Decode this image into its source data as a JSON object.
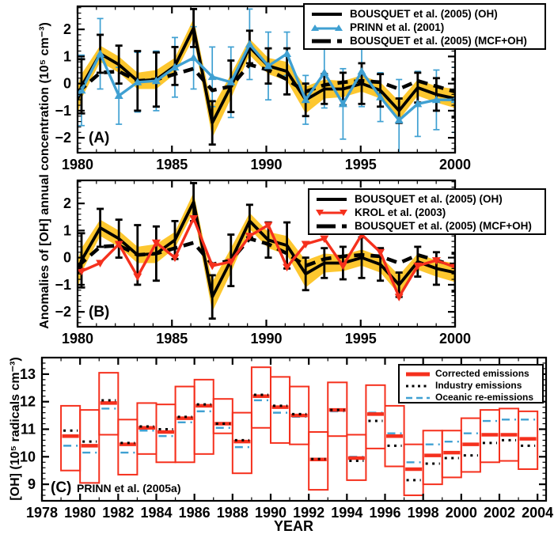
{
  "figure": {
    "background": "#ffffff",
    "colors": {
      "black": "#000000",
      "blue": "#3FA0D2",
      "red": "#F5301D",
      "yellow": "#FDC72F"
    }
  },
  "chart_data": [
    {
      "type": "line",
      "panel_label": "(A)",
      "ylabel": "Anomalies of [OH] annual concentration (10⁵ cm⁻³)",
      "x_years": [
        1980,
        1981,
        1982,
        1983,
        1984,
        1985,
        1986,
        1987,
        1988,
        1989,
        1990,
        1991,
        1992,
        1993,
        1994,
        1995,
        1996,
        1997,
        1998,
        1999,
        2000
      ],
      "xticks": [
        1980,
        1985,
        1990,
        1995,
        2000
      ],
      "yticks": [
        -2,
        -1,
        0,
        1,
        2
      ],
      "xlim": [
        1980,
        2000
      ],
      "ylim": [
        -2.55,
        2.85
      ],
      "legend": [
        "BOUSQUET et al. (2005) (OH)",
        "PRINN et al. (2001)",
        "BOUSQUET et al. (2005) (MCF+OH)"
      ],
      "band_halfwidth": [
        0.45,
        0.3,
        0.3,
        0.3,
        0.35,
        0.3,
        0.35,
        0.55,
        0.45,
        0.3,
        0.3,
        0.35,
        0.5,
        0.35,
        0.3,
        0.3,
        0.3,
        0.35,
        0.3,
        0.3,
        0.35
      ],
      "band_edge": {
        "c": -0.65,
        "hw": 0.55
      },
      "series": [
        {
          "name": "BOUSQUET et al. (2005) (OH)",
          "color": "#000000",
          "style": "solid",
          "edge_start": -0.6,
          "values": [
            -0.1,
            1.1,
            0.7,
            0.1,
            0.15,
            0.65,
            2.05,
            -1.45,
            -0.1,
            1.35,
            0.65,
            0.45,
            -0.6,
            -0.2,
            -0.2,
            0.0,
            -0.25,
            -1.0,
            -0.15,
            -0.4,
            -0.55
          ],
          "err": [
            1.0,
            0.7,
            0.7,
            1.1,
            1.0,
            0.7,
            0.7,
            0.8,
            0.95,
            0.6,
            0.65,
            0.85,
            0.6,
            0.55,
            0.6,
            0.75,
            0.6,
            0.45,
            0.55,
            0.6,
            0.7
          ]
        },
        {
          "name": "BOUSQUET et al. (2005) (MCF+OH)",
          "color": "#000000",
          "style": "dashed",
          "edge_start": -0.3,
          "values": [
            -0.2,
            0.4,
            0.45,
            0.1,
            0.15,
            0.35,
            0.55,
            -0.25,
            -0.1,
            0.7,
            0.5,
            0.15,
            -0.3,
            -0.05,
            0.05,
            0.1,
            0.05,
            -0.2,
            0.1,
            -0.1,
            -0.3
          ]
        },
        {
          "name": "PRINN et al. (2001)",
          "color": "#3FA0D2",
          "style": "triangle-up",
          "edge_start": -0.45,
          "values": [
            -0.25,
            1.1,
            -0.45,
            0.05,
            0.1,
            0.6,
            0.95,
            0.25,
            0.05,
            1.45,
            0.65,
            1.1,
            -0.6,
            0.4,
            -0.75,
            0.45,
            -0.5,
            -1.35,
            -0.75,
            -0.6,
            -0.6
          ],
          "err": [
            1.3,
            1.3,
            1.05,
            1.1,
            1.1,
            1.1,
            1.15,
            1.1,
            1.3,
            1.3,
            1.25,
            0.8,
            0.9,
            1.3,
            1.3,
            1.3,
            0.9,
            1.5,
            1.2,
            1.1,
            1.2
          ]
        }
      ]
    },
    {
      "type": "line",
      "panel_label": "(B)",
      "x_years": [
        1980,
        1981,
        1982,
        1983,
        1984,
        1985,
        1986,
        1987,
        1988,
        1989,
        1990,
        1991,
        1992,
        1993,
        1994,
        1995,
        1996,
        1997,
        1998,
        1999,
        2000
      ],
      "xticks": [
        1980,
        1985,
        1990,
        1995,
        2000
      ],
      "yticks": [
        -2,
        -1,
        0,
        1,
        2
      ],
      "xlim": [
        1980,
        2000
      ],
      "ylim": [
        -2.55,
        2.85
      ],
      "legend": [
        "BOUSQUET et al. (2005) (OH)",
        "KROL et al. (2003)",
        "BOUSQUET et al. (2005) (MCF+OH)"
      ],
      "band_halfwidth": [
        0.45,
        0.3,
        0.3,
        0.3,
        0.35,
        0.3,
        0.35,
        0.55,
        0.45,
        0.3,
        0.3,
        0.35,
        0.5,
        0.35,
        0.3,
        0.3,
        0.3,
        0.35,
        0.3,
        0.3,
        0.35
      ],
      "band_edge": {
        "c": -0.65,
        "hw": 0.55
      },
      "series": [
        {
          "name": "BOUSQUET et al. (2005) (OH)",
          "color": "#000000",
          "style": "solid",
          "edge_start": -0.6,
          "values": [
            -0.1,
            1.1,
            0.7,
            0.1,
            0.15,
            0.65,
            2.05,
            -1.45,
            -0.1,
            1.35,
            0.65,
            0.45,
            -0.6,
            -0.2,
            -0.2,
            0.0,
            -0.25,
            -1.0,
            -0.15,
            -0.4,
            -0.55
          ],
          "err": [
            1.0,
            0.7,
            0.7,
            1.1,
            1.0,
            0.7,
            0.7,
            0.8,
            0.95,
            0.6,
            0.65,
            0.85,
            0.6,
            0.55,
            0.6,
            0.75,
            0.6,
            0.45,
            0.55,
            0.6,
            0.7
          ]
        },
        {
          "name": "BOUSQUET et al. (2005) (MCF+OH)",
          "color": "#000000",
          "style": "dashed",
          "edge_start": -0.3,
          "values": [
            -0.2,
            0.4,
            0.45,
            0.1,
            0.15,
            0.35,
            0.55,
            -0.25,
            -0.1,
            0.7,
            0.5,
            0.15,
            -0.3,
            -0.05,
            0.05,
            0.1,
            0.05,
            -0.2,
            0.1,
            -0.1,
            -0.3
          ]
        },
        {
          "name": "KROL et al. (2003)",
          "color": "#F5301D",
          "style": "triangle-down",
          "edge_start": -0.45,
          "values": [
            -0.5,
            -0.2,
            0.5,
            -0.7,
            0.55,
            0.0,
            1.45,
            -0.3,
            -0.15,
            0.8,
            1.2,
            -0.35,
            0.5,
            0.7,
            -0.3,
            0.85,
            0.2,
            -1.45,
            -0.3,
            -0.1,
            -0.35
          ]
        }
      ]
    },
    {
      "type": "box",
      "panel_label": "(C)",
      "source": "PRINN et al. (2005a)",
      "ylabel": "[OH] (10⁵ radicals cm⁻³)",
      "xlabel": "YEAR",
      "years": [
        1979,
        1980,
        1981,
        1982,
        1983,
        1984,
        1985,
        1986,
        1987,
        1988,
        1989,
        1990,
        1991,
        1992,
        1993,
        1994,
        1995,
        1996,
        1997,
        1998,
        1999,
        2000,
        2001,
        2002,
        2003
      ],
      "xticks": [
        1978,
        1980,
        1982,
        1984,
        1986,
        1988,
        1990,
        1992,
        1994,
        1996,
        1998,
        2000,
        2002,
        2004
      ],
      "yticks": [
        9,
        10,
        11,
        12,
        13
      ],
      "xlim": [
        1978,
        2004.45
      ],
      "ylim": [
        8.4,
        13.6
      ],
      "legend": [
        "Corrected emissions",
        "Industry emissions",
        "Oceanic re-emissions"
      ],
      "corrected": [
        10.75,
        10.4,
        11.95,
        10.45,
        11.05,
        10.9,
        11.4,
        11.85,
        11.2,
        10.55,
        12.2,
        11.8,
        11.5,
        9.9,
        11.7,
        9.95,
        11.55,
        10.75,
        9.55,
        10.05,
        10.15,
        10.45,
        10.8,
        10.8,
        10.65
      ],
      "industry": [
        10.95,
        10.55,
        12.05,
        10.5,
        11.1,
        11.0,
        11.45,
        11.9,
        11.2,
        10.6,
        12.25,
        11.85,
        11.55,
        9.92,
        11.7,
        9.85,
        11.3,
        10.4,
        9.15,
        9.75,
        9.95,
        10.05,
        10.5,
        10.6,
        10.4
      ],
      "oceanic": [
        10.4,
        10.15,
        11.75,
        10.15,
        10.95,
        10.75,
        11.25,
        11.65,
        11.05,
        10.35,
        12.05,
        11.6,
        11.45,
        9.87,
        11.65,
        10.0,
        11.6,
        10.85,
        9.8,
        10.45,
        10.55,
        10.85,
        11.3,
        11.35,
        11.35
      ],
      "box_low": [
        9.5,
        9.05,
        10.8,
        9.35,
        10.1,
        9.8,
        9.8,
        10.1,
        10.85,
        9.4,
        11.05,
        10.5,
        10.45,
        8.8,
        10.75,
        9.15,
        10.3,
        9.65,
        8.6,
        9.0,
        9.25,
        9.45,
        9.8,
        9.85,
        9.55
      ],
      "box_high": [
        11.85,
        11.7,
        13.05,
        11.35,
        11.95,
        11.9,
        12.55,
        12.8,
        12.1,
        11.6,
        13.25,
        12.9,
        12.55,
        10.9,
        12.7,
        10.8,
        12.6,
        11.85,
        10.45,
        10.95,
        10.95,
        11.4,
        11.7,
        11.75,
        11.65
      ]
    }
  ]
}
